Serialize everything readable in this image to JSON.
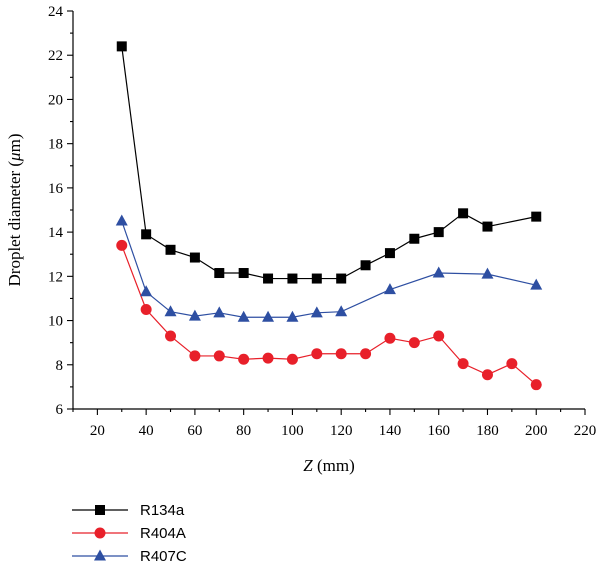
{
  "chart_data": {
    "type": "line",
    "xlabel_var": "Z",
    "xlabel_unit": " (mm)",
    "ylabel_pre": "Droplet diameter (",
    "ylabel_mu": "μ",
    "ylabel_post": "m)",
    "xlim": [
      10,
      220
    ],
    "ylim": [
      6,
      24
    ],
    "xticks": [
      20,
      40,
      60,
      80,
      100,
      120,
      140,
      160,
      180,
      200,
      220
    ],
    "yticks": [
      6,
      8,
      10,
      12,
      14,
      16,
      18,
      20,
      22,
      24
    ],
    "grid": false,
    "legend_position": "bottom-left",
    "series": [
      {
        "name": "R134a",
        "color": "#000000",
        "marker": "square",
        "x": [
          30,
          40,
          50,
          60,
          70,
          80,
          90,
          100,
          110,
          120,
          130,
          140,
          150,
          160,
          170,
          180,
          200
        ],
        "y": [
          22.4,
          13.9,
          13.2,
          12.85,
          12.15,
          12.15,
          11.9,
          11.9,
          11.9,
          11.9,
          12.5,
          13.05,
          13.7,
          14.0,
          14.85,
          14.25,
          14.7
        ]
      },
      {
        "name": "R404A",
        "color": "#e8202a",
        "marker": "circle",
        "x": [
          30,
          40,
          50,
          60,
          70,
          80,
          90,
          100,
          110,
          120,
          130,
          140,
          150,
          160,
          170,
          180,
          190,
          200
        ],
        "y": [
          13.4,
          10.5,
          9.3,
          8.4,
          8.4,
          8.25,
          8.3,
          8.25,
          8.5,
          8.5,
          8.5,
          9.2,
          9.0,
          9.3,
          8.05,
          7.55,
          8.05,
          7.1
        ]
      },
      {
        "name": "R407C",
        "color": "#2e4fa2",
        "marker": "triangle",
        "x": [
          30,
          40,
          50,
          60,
          70,
          80,
          90,
          100,
          110,
          120,
          140,
          160,
          180,
          200
        ],
        "y": [
          14.5,
          11.3,
          10.4,
          10.2,
          10.35,
          10.15,
          10.15,
          10.15,
          10.35,
          10.4,
          11.4,
          12.15,
          12.1,
          11.6
        ]
      }
    ]
  }
}
